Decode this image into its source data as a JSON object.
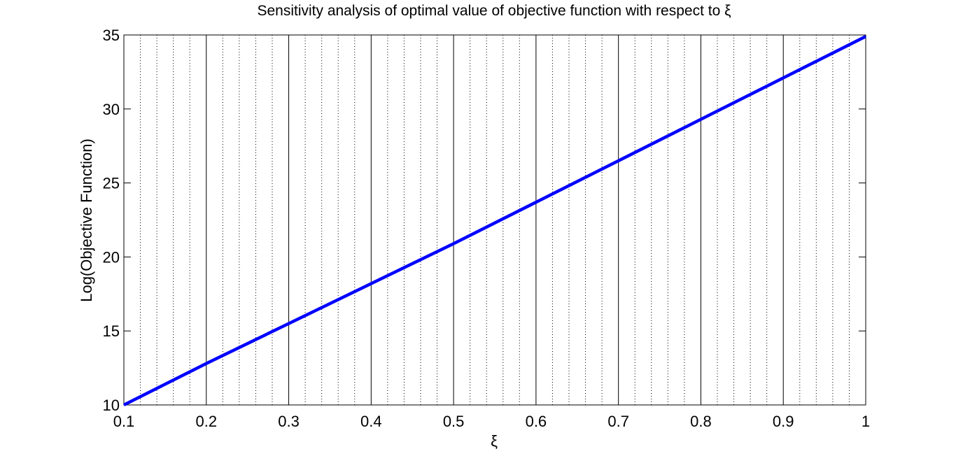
{
  "chart_data": {
    "type": "line",
    "title": "Sensitivity analysis of optimal value of objective function with respect to ξ",
    "xlabel": "ξ",
    "ylabel": "Log(Objective Function)",
    "x": [
      0.1,
      0.2,
      0.3,
      0.4,
      0.5,
      0.6,
      0.7,
      0.8,
      0.9,
      1
    ],
    "series": [
      {
        "name": "Log(Objective Function)",
        "color": "#0000ff",
        "values": [
          10,
          12.8,
          15.5,
          18.2,
          20.9,
          23.7,
          26.5,
          29.3,
          32.1,
          34.9
        ]
      }
    ],
    "xlim": [
      0.1,
      1
    ],
    "ylim": [
      10,
      35
    ],
    "xticks": [
      0.1,
      0.2,
      0.3,
      0.4,
      0.5,
      0.6,
      0.7,
      0.8,
      0.9,
      1
    ],
    "yticks": [
      10,
      15,
      20,
      25,
      30,
      35
    ],
    "xminorticks": [
      0.12,
      0.14,
      0.16,
      0.18,
      0.22,
      0.24,
      0.26,
      0.28,
      0.32,
      0.34,
      0.36,
      0.38,
      0.42,
      0.44,
      0.46,
      0.48,
      0.52,
      0.54,
      0.56,
      0.58,
      0.62,
      0.64,
      0.66,
      0.68,
      0.72,
      0.74,
      0.76,
      0.78,
      0.82,
      0.84,
      0.86,
      0.88,
      0.92,
      0.94,
      0.96,
      0.98
    ],
    "xgrid": true,
    "xminorgrid": true,
    "ygrid": false
  }
}
